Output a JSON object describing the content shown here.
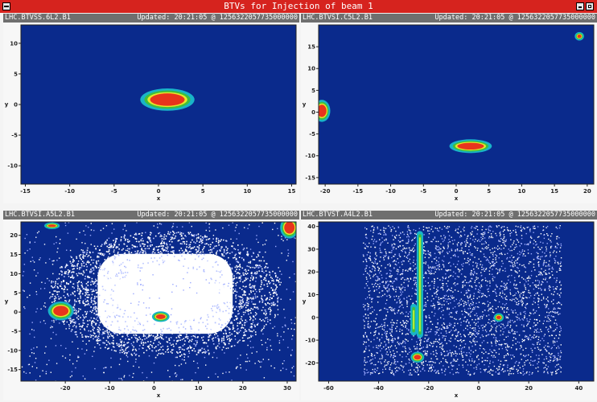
{
  "window": {
    "title": "BTVs for Injection of beam 1",
    "menu_icon": "menu-icon",
    "minimize_icon": "minimize-icon",
    "maximize_icon": "maximize-icon"
  },
  "colors": {
    "titlebar": "#d6231e",
    "header": "#6f6f6f",
    "background": "#0a2a8c",
    "core": "#e8341c",
    "halo_green": "#3fbf3f",
    "halo_cyan": "#19b4c8"
  },
  "panels": [
    {
      "name": "LHC.BTVSS.6L2.B1",
      "updated": "Updated: 20:21:05 @ 1256322057735000000",
      "xlabel": "x",
      "ylabel": "y",
      "xlim": [
        -15.5,
        15.5
      ],
      "ylim": [
        -13,
        13
      ],
      "xticks": [
        -15,
        -10,
        -5,
        0,
        5,
        10,
        15
      ],
      "yticks": [
        -10,
        -5,
        0,
        5,
        10
      ],
      "spots": [
        {
          "x": 1,
          "y": 0.8,
          "rx": 2.5,
          "ry": 1.3
        }
      ],
      "noise": false,
      "white_cloud": null,
      "streaks": []
    },
    {
      "name": "LHC.BTVSI.C5L2.B1",
      "updated": "Updated: 20:21:05 @ 1256322057735000000",
      "xlabel": "x",
      "ylabel": "y",
      "xlim": [
        -21,
        21
      ],
      "ylim": [
        -16.5,
        20
      ],
      "xticks": [
        -20,
        -15,
        -10,
        -5,
        0,
        5,
        10,
        15,
        20
      ],
      "yticks": [
        -15,
        -10,
        -5,
        0,
        5,
        10,
        15
      ],
      "spots": [
        {
          "x": 2.2,
          "y": -7.8,
          "rx": 2.6,
          "ry": 1.0
        },
        {
          "x": -20.5,
          "y": 0.3,
          "rx": 0.9,
          "ry": 1.8
        },
        {
          "x": 18.8,
          "y": 17.4,
          "rx": 0.4,
          "ry": 0.5
        }
      ],
      "noise": false,
      "white_cloud": null,
      "streaks": []
    },
    {
      "name": "LHC.BTVSI.A5L2.B1",
      "updated": "Updated: 20:21:05 @ 1256322057735000000",
      "xlabel": "x",
      "ylabel": "y",
      "xlim": [
        -30,
        32
      ],
      "ylim": [
        -18,
        23.5
      ],
      "xticks": [
        -20,
        -10,
        0,
        10,
        20,
        30
      ],
      "yticks": [
        -15,
        -10,
        -5,
        0,
        5,
        10,
        15,
        20
      ],
      "spots": [
        {
          "x": -21,
          "y": 0.3,
          "rx": 2.2,
          "ry": 1.7
        },
        {
          "x": 1.5,
          "y": -1.2,
          "rx": 1.4,
          "ry": 0.8
        },
        {
          "x": 30.5,
          "y": 22,
          "rx": 1.5,
          "ry": 2.0
        },
        {
          "x": -23,
          "y": 22.5,
          "rx": 1.2,
          "ry": 0.4
        }
      ],
      "noise": true,
      "white_cloud": {
        "x0": -17,
        "x1": 22,
        "y0": -7.5,
        "y1": 17
      },
      "streaks": []
    },
    {
      "name": "LHC.BTVST.A4L2.B1",
      "updated": "Updated: 20:21:05 @ 1256322057735000000",
      "xlabel": "x",
      "ylabel": "y",
      "xlim": [
        -64,
        46
      ],
      "ylim": [
        -28,
        42
      ],
      "xticks": [
        -60,
        -40,
        -20,
        0,
        20,
        40
      ],
      "yticks": [
        -20,
        -10,
        0,
        10,
        20,
        30,
        40
      ],
      "spots": [
        {
          "x": -24.5,
          "y": -17.5,
          "rx": 1.8,
          "ry": 1.4
        },
        {
          "x": 8,
          "y": 0,
          "rx": 1.2,
          "ry": 1.0
        }
      ],
      "noise": true,
      "white_cloud": null,
      "streaks": [
        {
          "x": -26,
          "y0": -8,
          "y1": 6
        },
        {
          "x": -23.5,
          "y0": -9,
          "y1": 38
        }
      ]
    }
  ]
}
